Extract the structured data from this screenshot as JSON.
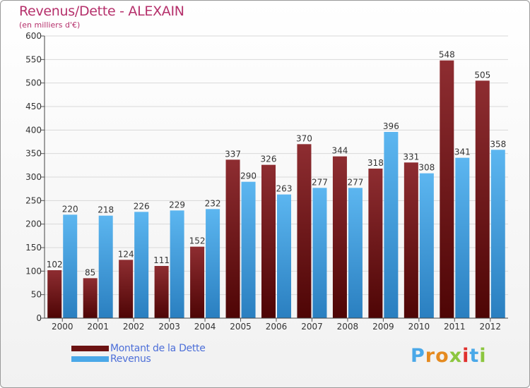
{
  "header": {
    "title": "Revenus/Dette - ALEXAIN",
    "subtitle": "(en milliers d'€)"
  },
  "chart_data": {
    "type": "bar",
    "title": "Revenus/Dette - ALEXAIN",
    "subtitle": "(en milliers d'€)",
    "categories": [
      "2000",
      "2001",
      "2002",
      "2003",
      "2004",
      "2005",
      "2006",
      "2007",
      "2008",
      "2009",
      "2010",
      "2011",
      "2012"
    ],
    "series": [
      {
        "name": "Montant de la Dette",
        "color": "#7a1b1e",
        "values": [
          102,
          85,
          124,
          111,
          152,
          337,
          326,
          370,
          344,
          318,
          331,
          548,
          505
        ]
      },
      {
        "name": "Revenus",
        "color": "#4aa8e8",
        "values": [
          220,
          218,
          226,
          229,
          232,
          290,
          263,
          277,
          277,
          396,
          308,
          341,
          358
        ]
      }
    ],
    "ylim": [
      0,
      600
    ],
    "yticks": [
      0,
      50,
      100,
      150,
      200,
      250,
      300,
      350,
      400,
      450,
      500,
      550,
      600
    ],
    "grid": true,
    "legend_position": "bottom-left"
  },
  "legend": {
    "items": [
      {
        "label": "Montant de la Dette",
        "color": "#6b1212"
      },
      {
        "label": "Revenus",
        "color": "#4aa8e8"
      }
    ]
  },
  "logo": {
    "letters": [
      "P",
      "r",
      "o",
      "x",
      "i",
      "t",
      "i"
    ],
    "colors": [
      "#4aa8e8",
      "#e58a1f",
      "#e58a1f",
      "#8cc63f",
      "#e0302d",
      "#4aa8e8",
      "#8cc63f"
    ]
  }
}
